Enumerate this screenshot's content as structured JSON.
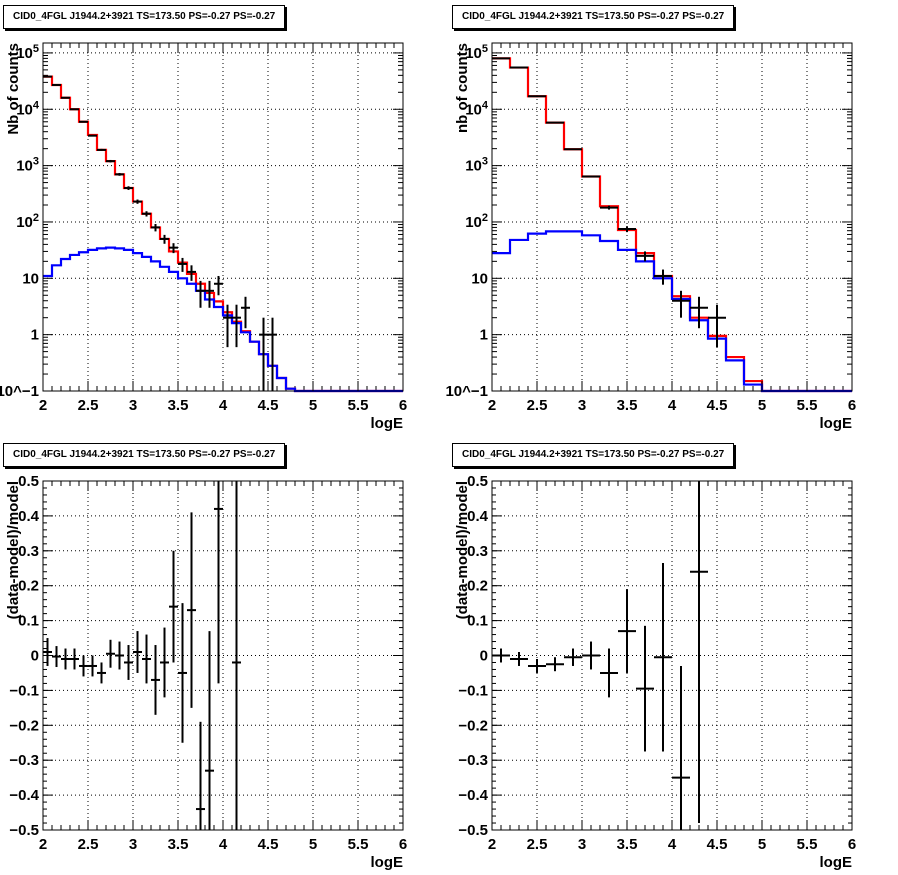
{
  "chart_data": [
    {
      "type": "histogram",
      "title": "CID0_4FGL J1944.2+3921 TS=173.50 PS=-0.27 PS=-0.27",
      "xlabel": "logE",
      "ylabel": "Nb of counts",
      "xlim": [
        2,
        6
      ],
      "ylim": [
        0.1,
        150000
      ],
      "log_y": true,
      "grid": true,
      "x_ticks": [
        "2",
        "2.5",
        "3",
        "3.5",
        "4",
        "4.5",
        "5",
        "5.5",
        "6"
      ],
      "y_ticks": [
        "10^-1",
        "1",
        "10",
        "10^2",
        "10^3",
        "10^4",
        "10^5"
      ],
      "bin_edges": [
        2.0,
        2.1,
        2.2,
        2.3,
        2.4,
        2.5,
        2.6,
        2.7,
        2.8,
        2.9,
        3.0,
        3.1,
        3.2,
        3.3,
        3.4,
        3.5,
        3.6,
        3.7,
        3.8,
        3.9,
        4.0,
        4.1,
        4.2,
        4.3,
        4.4,
        4.5,
        4.6,
        4.7,
        4.8,
        4.9,
        5.0,
        5.1,
        5.2,
        5.3,
        5.4,
        5.5,
        5.6,
        5.7,
        5.8,
        5.9,
        6.0
      ],
      "series": [
        {
          "color": "#ff0000",
          "style": "step",
          "values": [
            38000,
            27000,
            16000,
            10000,
            6000,
            3500,
            1900,
            1200,
            700,
            400,
            230,
            140,
            80,
            50,
            30,
            19,
            12,
            8,
            5.5,
            3.9,
            2.5,
            1.7,
            1.15,
            0.75,
            0.45,
            0.28,
            0.17,
            0.11,
            0.1,
            0.1,
            0.1,
            0.1,
            0.1,
            0.1,
            0.1,
            0.1,
            0.1,
            0.1,
            0.1,
            0.1
          ]
        },
        {
          "color": "#0000ff",
          "style": "step",
          "values": [
            11,
            17,
            22,
            26,
            29,
            32,
            34,
            35,
            34,
            32,
            28,
            24,
            20,
            16,
            13,
            10,
            8,
            6,
            4.2,
            3.1,
            2.2,
            1.6,
            1.1,
            0.75,
            0.45,
            0.28,
            0.17,
            0.11,
            0.1,
            0.1,
            0.1,
            0.1,
            0.1,
            0.1,
            0.1,
            0.1,
            0.1,
            0.1,
            0.1,
            0.1
          ]
        }
      ],
      "data_points": [
        {
          "x": 2.05,
          "y": 38000,
          "yerr": 400
        },
        {
          "x": 2.15,
          "y": 27000,
          "yerr": 300
        },
        {
          "x": 2.25,
          "y": 16000,
          "yerr": 250
        },
        {
          "x": 2.35,
          "y": 10000,
          "yerr": 200
        },
        {
          "x": 2.45,
          "y": 6000,
          "yerr": 150
        },
        {
          "x": 2.55,
          "y": 3400,
          "yerr": 110
        },
        {
          "x": 2.65,
          "y": 1900,
          "yerr": 80
        },
        {
          "x": 2.75,
          "y": 1200,
          "yerr": 60
        },
        {
          "x": 2.85,
          "y": 700,
          "yerr": 40
        },
        {
          "x": 2.95,
          "y": 400,
          "yerr": 30
        },
        {
          "x": 3.05,
          "y": 230,
          "yerr": 20
        },
        {
          "x": 3.15,
          "y": 140,
          "yerr": 15
        },
        {
          "x": 3.25,
          "y": 80,
          "yerr": 12
        },
        {
          "x": 3.35,
          "y": 50,
          "yerr": 9
        },
        {
          "x": 3.45,
          "y": 35,
          "yerr": 7
        },
        {
          "x": 3.55,
          "y": 18,
          "yerr": 5
        },
        {
          "x": 3.65,
          "y": 13,
          "yerr": 4
        },
        {
          "x": 3.75,
          "y": 6,
          "yerr": 3
        },
        {
          "x": 3.85,
          "y": 6,
          "yerr": 3
        },
        {
          "x": 3.95,
          "y": 8,
          "yerr": 3
        },
        {
          "x": 4.05,
          "y": 2,
          "yerr": 1.4
        },
        {
          "x": 4.15,
          "y": 2,
          "yerr": 1.4
        },
        {
          "x": 4.25,
          "y": 3,
          "yerr": 1.7
        },
        {
          "x": 4.45,
          "y": 1,
          "yerr": 1
        },
        {
          "x": 4.55,
          "y": 1,
          "yerr": 1
        }
      ]
    },
    {
      "type": "histogram",
      "title": "CID0_4FGL J1944.2+3921 TS=173.50 PS=-0.27 PS=-0.27",
      "xlabel": "logE",
      "ylabel": "nb of counts",
      "xlim": [
        2,
        6
      ],
      "ylim": [
        0.1,
        150000
      ],
      "log_y": true,
      "grid": true,
      "x_ticks": [
        "2",
        "2.5",
        "3",
        "3.5",
        "4",
        "4.5",
        "5",
        "5.5",
        "6"
      ],
      "y_ticks": [
        "10^-1",
        "1",
        "10",
        "10^2",
        "10^3",
        "10^4",
        "10^5"
      ],
      "bin_edges": [
        2.0,
        2.2,
        2.4,
        2.6,
        2.8,
        3.0,
        3.2,
        3.4,
        3.6,
        3.8,
        4.0,
        4.2,
        4.4,
        4.6,
        4.8,
        5.0,
        5.2,
        5.4,
        5.6,
        5.8,
        6.0
      ],
      "series": [
        {
          "color": "#ff0000",
          "style": "step",
          "values": [
            80000,
            55000,
            17000,
            5800,
            1950,
            640,
            190,
            72,
            28,
            11,
            4.8,
            2.0,
            0.95,
            0.4,
            0.15,
            0.1,
            0.1,
            0.1,
            0.1,
            0.1
          ]
        },
        {
          "color": "#0000ff",
          "style": "step",
          "values": [
            28,
            48,
            62,
            68,
            68,
            58,
            46,
            32,
            20,
            10,
            4.3,
            1.8,
            0.85,
            0.35,
            0.13,
            0.1,
            0.1,
            0.1,
            0.1,
            0.1
          ]
        }
      ],
      "data_points": [
        {
          "x": 2.1,
          "y": 80000,
          "yerr": 300
        },
        {
          "x": 2.3,
          "y": 55000,
          "yerr": 250
        },
        {
          "x": 2.5,
          "y": 17000,
          "yerr": 130
        },
        {
          "x": 2.7,
          "y": 5800,
          "yerr": 75
        },
        {
          "x": 2.9,
          "y": 1950,
          "yerr": 45
        },
        {
          "x": 3.1,
          "y": 640,
          "yerr": 25
        },
        {
          "x": 3.3,
          "y": 180,
          "yerr": 14
        },
        {
          "x": 3.5,
          "y": 75,
          "yerr": 9
        },
        {
          "x": 3.7,
          "y": 25,
          "yerr": 5
        },
        {
          "x": 3.9,
          "y": 11,
          "yerr": 3.3
        },
        {
          "x": 4.1,
          "y": 4,
          "yerr": 2
        },
        {
          "x": 4.3,
          "y": 3,
          "yerr": 1.7
        },
        {
          "x": 4.5,
          "y": 2,
          "yerr": 1.4
        }
      ]
    },
    {
      "type": "scatter",
      "title": "CID0_4FGL J1944.2+3921 TS=173.50 PS=-0.27 PS=-0.27",
      "xlabel": "logE",
      "ylabel": "(data-model)/model",
      "xlim": [
        2,
        6
      ],
      "ylim": [
        -0.5,
        0.5
      ],
      "log_y": false,
      "grid": true,
      "x_ticks": [
        "2",
        "2.5",
        "3",
        "3.5",
        "4",
        "4.5",
        "5",
        "5.5",
        "6"
      ],
      "y_ticks": [
        "-0.5",
        "-0.4",
        "-0.3",
        "-0.2",
        "-0.1",
        "0",
        "0.1",
        "0.2",
        "0.3",
        "0.4",
        "0.5"
      ],
      "half_width": 0.05,
      "data_points": [
        {
          "x": 2.05,
          "y": 0.01,
          "yerr": 0.04
        },
        {
          "x": 2.15,
          "y": -0.003,
          "yerr": 0.03
        },
        {
          "x": 2.25,
          "y": -0.01,
          "yerr": 0.03
        },
        {
          "x": 2.35,
          "y": -0.01,
          "yerr": 0.03
        },
        {
          "x": 2.45,
          "y": -0.03,
          "yerr": 0.03
        },
        {
          "x": 2.55,
          "y": -0.03,
          "yerr": 0.03
        },
        {
          "x": 2.65,
          "y": -0.05,
          "yerr": 0.03
        },
        {
          "x": 2.75,
          "y": 0.005,
          "yerr": 0.04
        },
        {
          "x": 2.85,
          "y": 0.0,
          "yerr": 0.04
        },
        {
          "x": 2.95,
          "y": -0.02,
          "yerr": 0.05
        },
        {
          "x": 3.05,
          "y": 0.01,
          "yerr": 0.06
        },
        {
          "x": 3.15,
          "y": -0.01,
          "yerr": 0.07
        },
        {
          "x": 3.25,
          "y": -0.07,
          "yerr": 0.1
        },
        {
          "x": 3.35,
          "y": -0.02,
          "yerr": 0.1
        },
        {
          "x": 3.45,
          "y": 0.14,
          "yerr": 0.16
        },
        {
          "x": 3.55,
          "y": -0.05,
          "yerr": 0.2
        },
        {
          "x": 3.65,
          "y": 0.13,
          "yerr": 0.28
        },
        {
          "x": 3.75,
          "y": -0.44,
          "yerr": 0.25
        },
        {
          "x": 3.85,
          "y": -0.33,
          "yerr": 0.4
        },
        {
          "x": 3.95,
          "y": 0.42,
          "yerr": 0.5
        },
        {
          "x": 4.15,
          "y": -0.02,
          "yerr": 0.7
        }
      ]
    },
    {
      "type": "scatter",
      "title": "CID0_4FGL J1944.2+3921 TS=173.50 PS=-0.27 PS=-0.27",
      "xlabel": "logE",
      "ylabel": "(data-model)/model",
      "xlim": [
        2,
        6
      ],
      "ylim": [
        -0.5,
        0.5
      ],
      "log_y": false,
      "grid": true,
      "x_ticks": [
        "2",
        "2.5",
        "3",
        "3.5",
        "4",
        "4.5",
        "5",
        "5.5",
        "6"
      ],
      "y_ticks": [
        "-0.5",
        "-0.4",
        "-0.3",
        "-0.2",
        "-0.1",
        "0",
        "0.1",
        "0.2",
        "0.3",
        "0.4",
        "0.5"
      ],
      "half_width": 0.1,
      "data_points": [
        {
          "x": 2.1,
          "y": 0.0,
          "yerr": 0.02
        },
        {
          "x": 2.3,
          "y": -0.01,
          "yerr": 0.02
        },
        {
          "x": 2.5,
          "y": -0.03,
          "yerr": 0.02
        },
        {
          "x": 2.7,
          "y": -0.025,
          "yerr": 0.02
        },
        {
          "x": 2.9,
          "y": -0.005,
          "yerr": 0.025
        },
        {
          "x": 3.1,
          "y": 0.0,
          "yerr": 0.04
        },
        {
          "x": 3.3,
          "y": -0.05,
          "yerr": 0.07
        },
        {
          "x": 3.5,
          "y": 0.07,
          "yerr": 0.12
        },
        {
          "x": 3.7,
          "y": -0.095,
          "yerr": 0.18
        },
        {
          "x": 3.9,
          "y": -0.005,
          "yerr": 0.27
        },
        {
          "x": 4.1,
          "y": -0.35,
          "yerr": 0.32
        },
        {
          "x": 4.3,
          "y": 0.24,
          "yerr": 0.72
        }
      ]
    }
  ]
}
